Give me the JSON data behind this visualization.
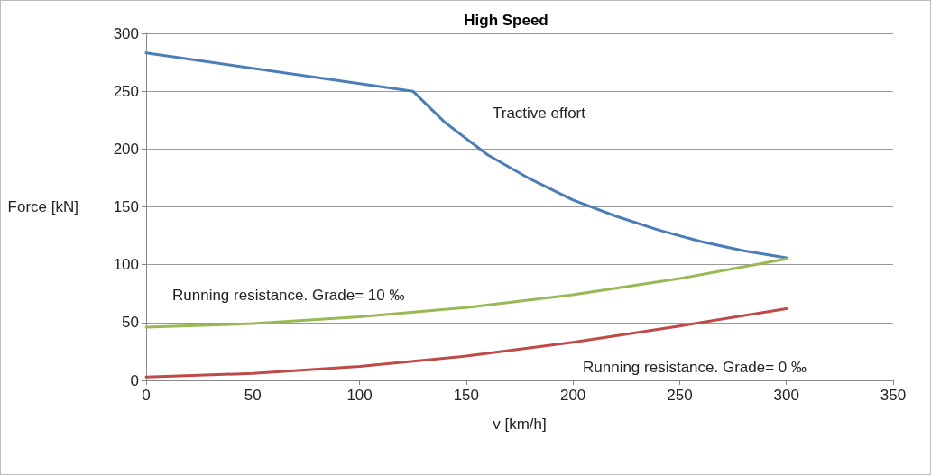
{
  "chart_data": {
    "type": "line",
    "title": "High Speed",
    "xlabel": "v [km/h]",
    "ylabel": "Force [kN]",
    "xlim": [
      0,
      350
    ],
    "xticks": [
      0,
      50,
      100,
      150,
      200,
      250,
      300,
      350
    ],
    "ylim": [
      0,
      300
    ],
    "yticks": [
      0,
      50,
      100,
      150,
      200,
      250,
      300
    ],
    "grid": "y",
    "marker": "none",
    "line_style": "solid",
    "series": [
      {
        "color": "#4a7ebb",
        "x": [
          0,
          125,
          140,
          160,
          180,
          200,
          220,
          240,
          260,
          280,
          300
        ],
        "values": [
          283,
          250,
          223,
          195,
          174,
          156,
          142,
          130,
          120,
          112,
          106
        ]
      },
      {
        "color": "#98b954",
        "x": [
          0,
          50,
          100,
          150,
          200,
          250,
          300
        ],
        "values": [
          46,
          49,
          55,
          63,
          74,
          88,
          105
        ]
      },
      {
        "color": "#be4b48",
        "x": [
          0,
          50,
          100,
          150,
          200,
          250,
          300
        ],
        "values": [
          3,
          6,
          12,
          21,
          33,
          47,
          62
        ]
      }
    ],
    "annotations": [
      "Tractive effort",
      "Running resistance. Grade= 10 ‰",
      "Running resistance. Grade= 0 ‰"
    ]
  }
}
